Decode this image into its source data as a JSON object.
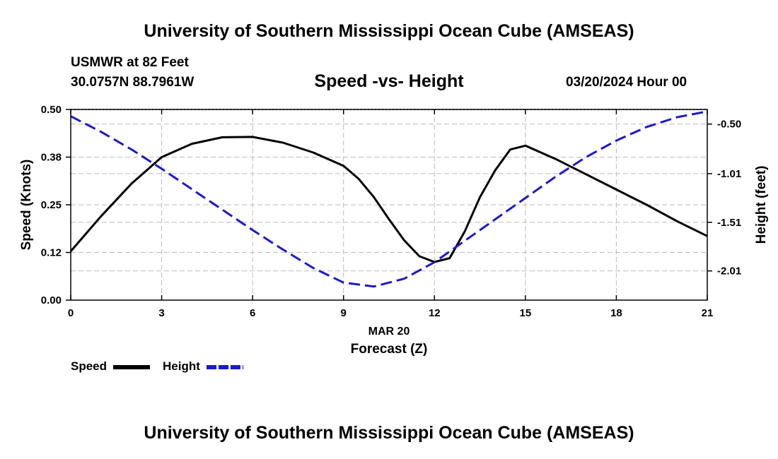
{
  "header": {
    "title": "University of Southern Mississippi Ocean Cube (AMSEAS)",
    "station": "USMWR at 82 Feet",
    "coords": "30.0757N  88.7961W",
    "subtitle": "Speed -vs- Height",
    "datestamp": "03/20/2024 Hour 00"
  },
  "footer": {
    "title": "University of Southern Mississippi Ocean Cube (AMSEAS)"
  },
  "legend": {
    "speed_label": "Speed",
    "height_label": "Height"
  },
  "colors": {
    "speed": "#000000",
    "height": "#1a1acc",
    "grid": "#bbbbbb"
  },
  "chart_data": {
    "type": "line",
    "xlabel_line1": "MAR 20",
    "xlabel": "Forecast (Z)",
    "ylabel_left": "Speed (Knots)",
    "ylabel_right": "Height (feet)",
    "xlim": [
      0,
      21
    ],
    "ylim_left": [
      0,
      0.5
    ],
    "ylim_right": [
      -2.31,
      -0.35
    ],
    "x_ticks": [
      0,
      3,
      6,
      9,
      12,
      15,
      18,
      21
    ],
    "x_tick_labels": [
      "0",
      "3",
      "6",
      "9",
      "12",
      "15",
      "18",
      "21"
    ],
    "y_left_ticks": [
      0,
      0.125,
      0.25,
      0.375,
      0.5
    ],
    "y_left_tick_labels": [
      "0.00",
      "0.12",
      "0.25",
      "0.38",
      "0.50"
    ],
    "y_right_ticks": [
      -0.5,
      -1.01,
      -1.51,
      -2.01
    ],
    "y_right_tick_labels": [
      "-0.50",
      "-1.01",
      "-1.51",
      "-2.01"
    ],
    "series": [
      {
        "name": "Speed",
        "axis": "left",
        "style": "solid",
        "x": [
          0,
          1,
          2,
          3,
          4,
          5,
          6,
          7,
          8,
          9,
          9.5,
          10,
          10.5,
          11,
          11.5,
          12,
          12.5,
          13,
          13.5,
          14,
          14.5,
          15,
          16,
          17,
          18,
          19,
          20,
          21
        ],
        "values": [
          0.128,
          0.22,
          0.305,
          0.375,
          0.41,
          0.427,
          0.428,
          0.413,
          0.387,
          0.352,
          0.318,
          0.27,
          0.212,
          0.157,
          0.115,
          0.1,
          0.11,
          0.18,
          0.27,
          0.34,
          0.395,
          0.405,
          0.37,
          0.33,
          0.29,
          0.25,
          0.207,
          0.168
        ]
      },
      {
        "name": "Height",
        "axis": "right",
        "style": "dashed",
        "x": [
          0,
          1,
          2,
          3,
          4,
          5,
          6,
          7,
          8,
          9,
          10,
          11,
          12,
          13,
          14,
          15,
          16,
          17,
          18,
          19,
          20,
          21
        ],
        "values": [
          -0.42,
          -0.58,
          -0.76,
          -0.96,
          -1.17,
          -1.38,
          -1.59,
          -1.79,
          -1.98,
          -2.13,
          -2.17,
          -2.09,
          -1.92,
          -1.7,
          -1.48,
          -1.26,
          -1.04,
          -0.84,
          -0.67,
          -0.53,
          -0.43,
          -0.37
        ]
      }
    ]
  }
}
